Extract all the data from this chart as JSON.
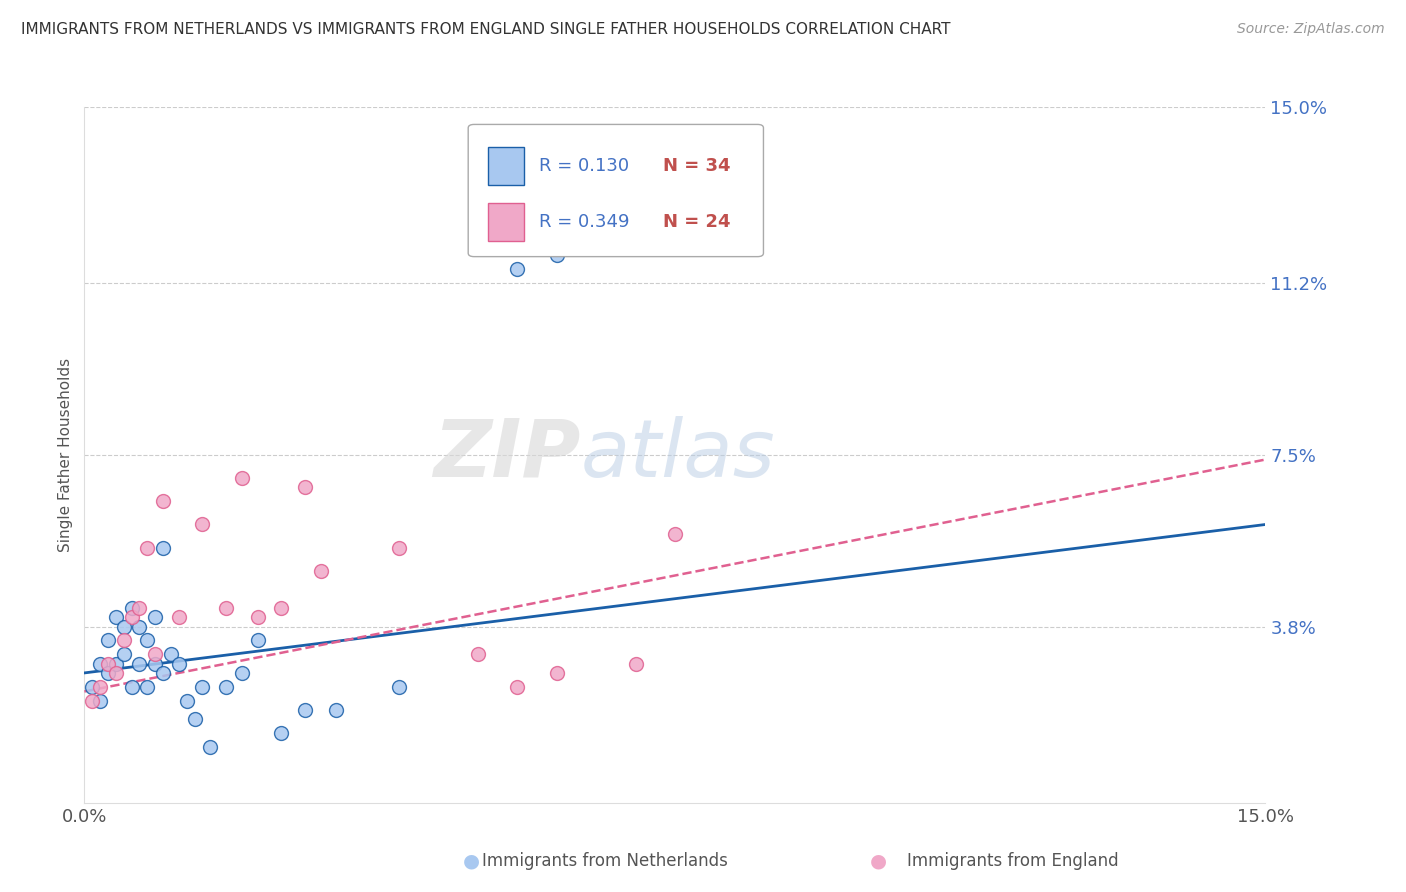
{
  "title": "IMMIGRANTS FROM NETHERLANDS VS IMMIGRANTS FROM ENGLAND SINGLE FATHER HOUSEHOLDS CORRELATION CHART",
  "source": "Source: ZipAtlas.com",
  "ylabel": "Single Father Households",
  "xmin": 0.0,
  "xmax": 0.15,
  "ymin": 0.0,
  "ymax": 0.15,
  "yticks": [
    0.038,
    0.075,
    0.112,
    0.15
  ],
  "ytick_labels": [
    "3.8%",
    "7.5%",
    "11.2%",
    "15.0%"
  ],
  "legend_r1": "R = 0.130",
  "legend_n1": "N = 34",
  "legend_r2": "R = 0.349",
  "legend_n2": "N = 24",
  "color_netherlands": "#a8c8f0",
  "color_england": "#f0a8c8",
  "color_line_netherlands": "#1a5fa8",
  "color_line_england": "#e06090",
  "watermark_zip": "ZIP",
  "watermark_atlas": "atlas",
  "netherlands_x": [
    0.001,
    0.002,
    0.002,
    0.003,
    0.003,
    0.004,
    0.004,
    0.005,
    0.005,
    0.006,
    0.006,
    0.007,
    0.007,
    0.008,
    0.008,
    0.009,
    0.009,
    0.01,
    0.01,
    0.011,
    0.012,
    0.013,
    0.014,
    0.015,
    0.016,
    0.018,
    0.02,
    0.022,
    0.025,
    0.028,
    0.032,
    0.04,
    0.055,
    0.06
  ],
  "netherlands_y": [
    0.025,
    0.022,
    0.03,
    0.028,
    0.035,
    0.03,
    0.04,
    0.032,
    0.038,
    0.025,
    0.042,
    0.03,
    0.038,
    0.025,
    0.035,
    0.03,
    0.04,
    0.028,
    0.055,
    0.032,
    0.03,
    0.022,
    0.018,
    0.025,
    0.012,
    0.025,
    0.028,
    0.035,
    0.015,
    0.02,
    0.02,
    0.025,
    0.115,
    0.118
  ],
  "england_x": [
    0.001,
    0.002,
    0.003,
    0.004,
    0.005,
    0.006,
    0.007,
    0.008,
    0.009,
    0.01,
    0.012,
    0.015,
    0.018,
    0.02,
    0.022,
    0.025,
    0.028,
    0.03,
    0.04,
    0.05,
    0.055,
    0.06,
    0.07,
    0.075
  ],
  "england_y": [
    0.022,
    0.025,
    0.03,
    0.028,
    0.035,
    0.04,
    0.042,
    0.055,
    0.032,
    0.065,
    0.04,
    0.06,
    0.042,
    0.07,
    0.04,
    0.042,
    0.068,
    0.05,
    0.055,
    0.032,
    0.025,
    0.028,
    0.03,
    0.058
  ],
  "trendline_nl_x0": 0.0,
  "trendline_nl_y0": 0.028,
  "trendline_nl_x1": 0.15,
  "trendline_nl_y1": 0.06,
  "trendline_en_x0": 0.0,
  "trendline_en_y0": 0.024,
  "trendline_en_x1": 0.15,
  "trendline_en_y1": 0.074
}
